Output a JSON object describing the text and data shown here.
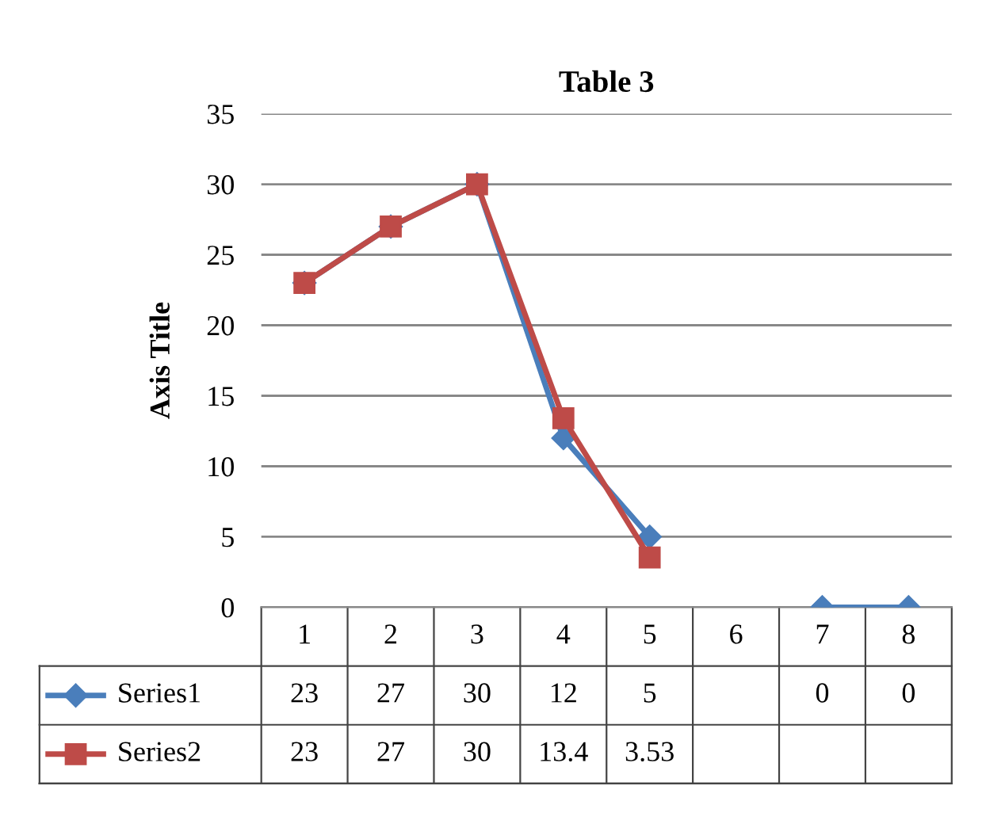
{
  "chart_data": {
    "type": "line",
    "title": "Table 3",
    "ylabel": "Axis Title",
    "categories": [
      "1",
      "2",
      "3",
      "4",
      "5",
      "6",
      "7",
      "8"
    ],
    "series": [
      {
        "name": "Series1",
        "color": "#4a7ebb",
        "marker": "diamond",
        "values": [
          23,
          27,
          30,
          12,
          5,
          null,
          0,
          0
        ]
      },
      {
        "name": "Series2",
        "color": "#be4b48",
        "marker": "square",
        "values": [
          23,
          27,
          30,
          13.4,
          3.53,
          null,
          null,
          null
        ]
      }
    ],
    "ylim": [
      0,
      35
    ],
    "yticks": [
      0,
      5,
      10,
      15,
      20,
      25,
      30,
      35
    ],
    "grid": "y",
    "legend": "bottom",
    "data_labels": true,
    "line_style": "solid"
  }
}
